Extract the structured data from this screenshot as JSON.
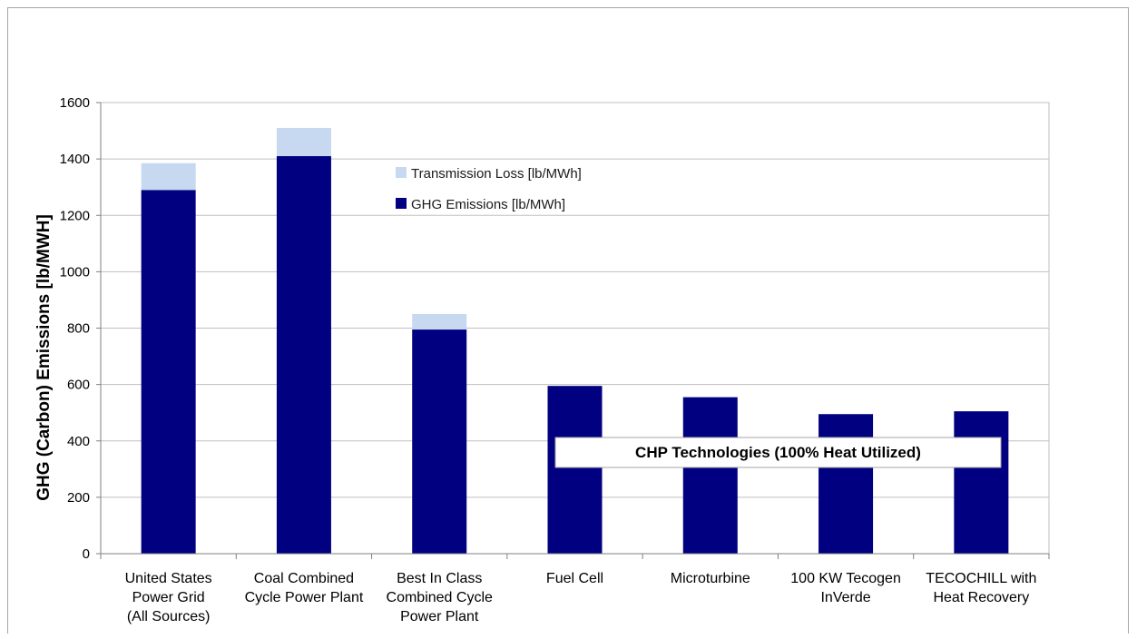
{
  "chart_data": {
    "type": "bar",
    "stacked": true,
    "title": "",
    "xlabel": "",
    "ylabel": "GHG (Carbon) Emissions [lb/MWH]",
    "ylim": [
      0,
      1600
    ],
    "yticks": [
      0,
      200,
      400,
      600,
      800,
      1000,
      1200,
      1400,
      1600
    ],
    "grid": true,
    "legend_position": "top-center",
    "categories": [
      [
        "United States",
        "Power Grid",
        "(All Sources)"
      ],
      [
        "Coal Combined",
        "Cycle Power Plant"
      ],
      [
        "Best In Class",
        "Combined Cycle",
        "Power Plant"
      ],
      [
        "Fuel Cell"
      ],
      [
        "Microturbine"
      ],
      [
        "100 KW Tecogen",
        "InVerde"
      ],
      [
        "TECOCHILL with",
        "Heat Recovery"
      ]
    ],
    "series": [
      {
        "name": "GHG Emissions [lb/MWh]",
        "color": "#000080",
        "values": [
          1290,
          1410,
          795,
          595,
          555,
          495,
          505
        ]
      },
      {
        "name": "Transmission Loss [lb/MWh]",
        "color": "#c6d9f1",
        "values": [
          95,
          100,
          55,
          0,
          0,
          0,
          0
        ]
      }
    ],
    "legend_order": [
      1,
      0
    ],
    "annotation": {
      "text": "CHP Technologies (100% Heat Utilized)"
    }
  }
}
